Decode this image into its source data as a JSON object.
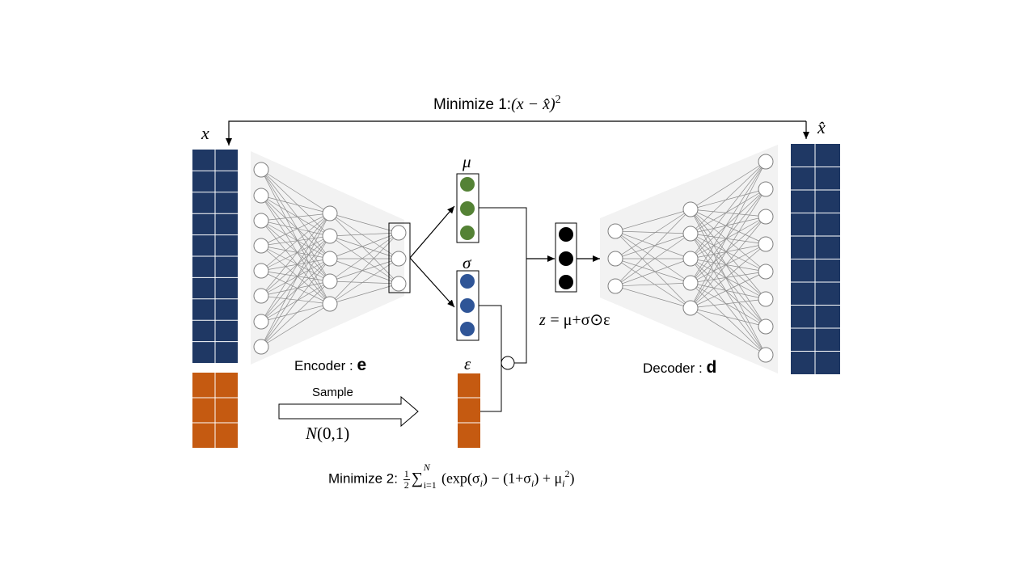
{
  "labels": {
    "minimize1_prefix": "Minimize 1:",
    "minimize1_expr": "(x − x̂)",
    "minimize1_power": "2",
    "x_input": "x",
    "x_hat": "x̂",
    "mu": "μ",
    "sigma": "σ",
    "epsilon": "ε",
    "z_eq": "z",
    "z_rhs": "= μ+σ⊙ε",
    "encoder_prefix": "Encoder : ",
    "encoder_symbol": "e",
    "decoder_prefix": "Decoder : ",
    "decoder_symbol": "d",
    "sample": "Sample",
    "normal_N": "N",
    "normal_args": "(0,1)",
    "minimize2_prefix": "Minimize 2: ",
    "minimize2_frac_num": "1",
    "minimize2_frac_den": "2",
    "minimize2_sum": "∑",
    "minimize2_sum_upper": "N",
    "minimize2_sum_lower": "i=1",
    "minimize2_body_a": "(exp(σ",
    "minimize2_sub_1": "i",
    "minimize2_body_b": ") − (1+σ",
    "minimize2_sub_2": "i",
    "minimize2_body_c": ") + μ",
    "minimize2_sub_3": "i",
    "minimize2_sup": "2",
    "minimize2_end": ")"
  },
  "colors": {
    "input_block": "#1f3864",
    "noise_block": "#c55a11",
    "mu_node": "#548235",
    "sigma_node": "#2f5597",
    "z_node": "#000000",
    "network_bg": "#f2f2f2",
    "edge": "#8c8c8c"
  },
  "icons": {
    "multiply_node": "circle-node",
    "sample_arrow": "hollow-right-arrow"
  }
}
